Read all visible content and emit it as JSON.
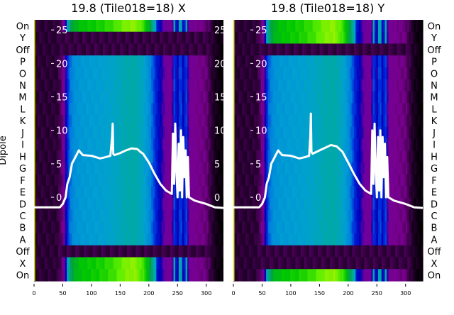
{
  "chart_data": [
    {
      "type": "heatmap",
      "title": "19.8 (Tile018=18) X",
      "ylabel": "Dipole",
      "row_labels": [
        "On",
        "Y",
        "Off",
        "P",
        "O",
        "N",
        "M",
        "L",
        "K",
        "J",
        "I",
        "H",
        "G",
        "F",
        "E",
        "D",
        "C",
        "B",
        "A",
        "Off",
        "X",
        "On"
      ],
      "row_kind": [
        "bright",
        "dark",
        "dark",
        "main",
        "main",
        "main",
        "main",
        "main",
        "main",
        "main",
        "main",
        "main",
        "main",
        "main",
        "main",
        "main",
        "main",
        "main",
        "main",
        "dark",
        "bright",
        "bright"
      ],
      "x_ticks": [
        0,
        50,
        100,
        150,
        200,
        250,
        300
      ],
      "xlim": [
        0,
        330
      ],
      "line_yticks": [
        0,
        5,
        10,
        15,
        20,
        25
      ],
      "line_ylim": [
        -12.5,
        26.5
      ],
      "line": {
        "x": [
          0,
          45,
          50,
          55,
          58,
          62,
          66,
          72,
          78,
          85,
          100,
          115,
          125,
          133,
          136,
          137,
          138,
          140,
          150,
          160,
          170,
          180,
          185,
          190,
          200,
          210,
          220,
          230,
          240,
          242,
          244,
          246,
          248,
          250,
          252,
          254,
          256,
          258,
          260,
          262,
          264,
          266,
          268,
          270,
          280,
          300,
          315,
          330
        ],
        "y": [
          -1.5,
          -1.5,
          -1,
          0,
          2,
          3,
          5,
          6,
          7,
          6.3,
          6.2,
          5.8,
          6,
          6.2,
          9,
          11,
          6.5,
          6.3,
          6.6,
          7,
          7.3,
          7.2,
          6.8,
          6.5,
          5.2,
          3.5,
          2,
          1,
          0.5,
          9.5,
          2,
          11,
          4,
          0,
          8,
          1,
          10,
          0,
          9,
          3,
          7,
          0,
          6,
          0,
          -0.5,
          -1,
          -1.5,
          -1.6
        ]
      }
    },
    {
      "type": "heatmap",
      "title": "19.8 (Tile018=18) Y",
      "row_labels": [
        "On",
        "Y",
        "Off",
        "P",
        "O",
        "N",
        "M",
        "L",
        "K",
        "J",
        "I",
        "H",
        "G",
        "F",
        "E",
        "D",
        "C",
        "B",
        "A",
        "Off",
        "X",
        "On"
      ],
      "row_kind": [
        "bright",
        "bright",
        "dark",
        "main",
        "main",
        "main",
        "main",
        "main",
        "main",
        "main",
        "main",
        "main",
        "main",
        "main",
        "main",
        "main",
        "main",
        "main",
        "main",
        "dark",
        "dark",
        "bright"
      ],
      "x_ticks": [
        0,
        50,
        100,
        150,
        200,
        250,
        300
      ],
      "xlim": [
        0,
        330
      ],
      "line_yticks": [
        0,
        5,
        10,
        15,
        20,
        25
      ],
      "line_ylim": [
        -12.5,
        26.5
      ],
      "line": {
        "x": [
          0,
          45,
          50,
          55,
          58,
          62,
          66,
          72,
          78,
          85,
          100,
          115,
          125,
          132,
          134,
          135,
          136,
          138,
          150,
          160,
          170,
          180,
          185,
          190,
          200,
          210,
          220,
          230,
          240,
          242,
          244,
          246,
          248,
          250,
          252,
          254,
          256,
          258,
          260,
          262,
          264,
          266,
          268,
          270,
          280,
          300,
          315,
          330
        ],
        "y": [
          -1.5,
          -1.5,
          -1,
          0,
          2,
          3,
          5,
          6,
          7,
          6.3,
          6.2,
          5.8,
          6,
          6.2,
          9,
          12.5,
          6.8,
          6.5,
          7,
          7.4,
          7.8,
          7.6,
          7.2,
          6.8,
          5.2,
          3.5,
          2,
          1,
          0.5,
          10,
          2,
          11,
          4,
          0,
          9,
          1,
          10,
          0,
          9,
          3,
          8,
          0,
          6,
          0,
          -0.5,
          -1,
          -1.5,
          -1.6
        ]
      }
    }
  ],
  "intensity_profile": {
    "x": [
      0,
      40,
      48,
      52,
      56,
      60,
      70,
      80,
      100,
      120,
      140,
      160,
      175,
      190,
      200,
      210,
      220,
      230,
      240,
      245,
      250,
      255,
      260,
      265,
      270,
      280,
      300,
      315,
      330
    ],
    "v": [
      0.05,
      0.05,
      0.08,
      0.12,
      0.2,
      0.3,
      0.36,
      0.38,
      0.39,
      0.4,
      0.42,
      0.45,
      0.46,
      0.42,
      0.36,
      0.28,
      0.2,
      0.14,
      0.12,
      0.3,
      0.18,
      0.32,
      0.2,
      0.3,
      0.12,
      0.11,
      0.09,
      0.03,
      0.0
    ]
  }
}
